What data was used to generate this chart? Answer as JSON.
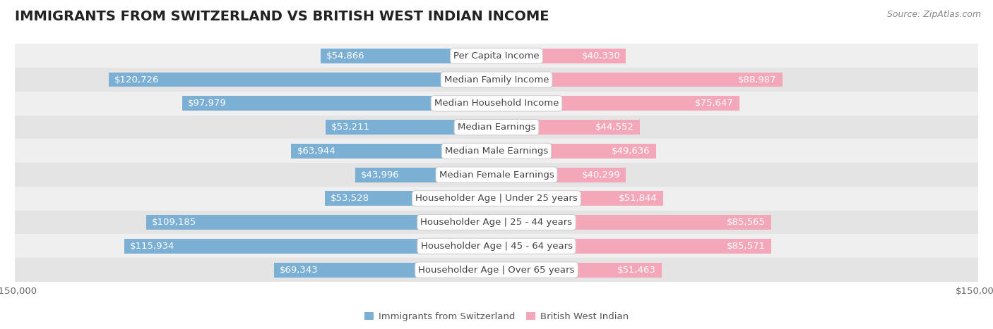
{
  "title": "IMMIGRANTS FROM SWITZERLAND VS BRITISH WEST INDIAN INCOME",
  "source": "Source: ZipAtlas.com",
  "categories": [
    "Per Capita Income",
    "Median Family Income",
    "Median Household Income",
    "Median Earnings",
    "Median Male Earnings",
    "Median Female Earnings",
    "Householder Age | Under 25 years",
    "Householder Age | 25 - 44 years",
    "Householder Age | 45 - 64 years",
    "Householder Age | Over 65 years"
  ],
  "switzerland_values": [
    54866,
    120726,
    97979,
    53211,
    63944,
    43996,
    53528,
    109185,
    115934,
    69343
  ],
  "bwi_values": [
    40330,
    88987,
    75647,
    44552,
    49636,
    40299,
    51844,
    85565,
    85571,
    51463
  ],
  "switzerland_labels": [
    "$54,866",
    "$120,726",
    "$97,979",
    "$53,211",
    "$63,944",
    "$43,996",
    "$53,528",
    "$109,185",
    "$115,934",
    "$69,343"
  ],
  "bwi_labels": [
    "$40,330",
    "$88,987",
    "$75,647",
    "$44,552",
    "$49,636",
    "$40,299",
    "$51,844",
    "$85,565",
    "$85,571",
    "$51,463"
  ],
  "switzerland_color": "#7bafd4",
  "bwi_color": "#f4a7b9",
  "max_value": 150000,
  "bar_height": 0.62,
  "row_bg_even": "#efefef",
  "row_bg_odd": "#e4e4e4",
  "background_color": "#ffffff",
  "legend_switzerland": "Immigrants from Switzerland",
  "legend_bwi": "British West Indian",
  "title_fontsize": 14,
  "label_fontsize": 9.5,
  "category_fontsize": 9.5,
  "axis_label_fontsize": 9.5,
  "source_fontsize": 9,
  "inside_label_threshold": 35000,
  "label_color_outside": "#777777",
  "label_color_inside": "#ffffff",
  "category_text_color": "#444444",
  "title_color": "#222222",
  "source_color": "#888888"
}
